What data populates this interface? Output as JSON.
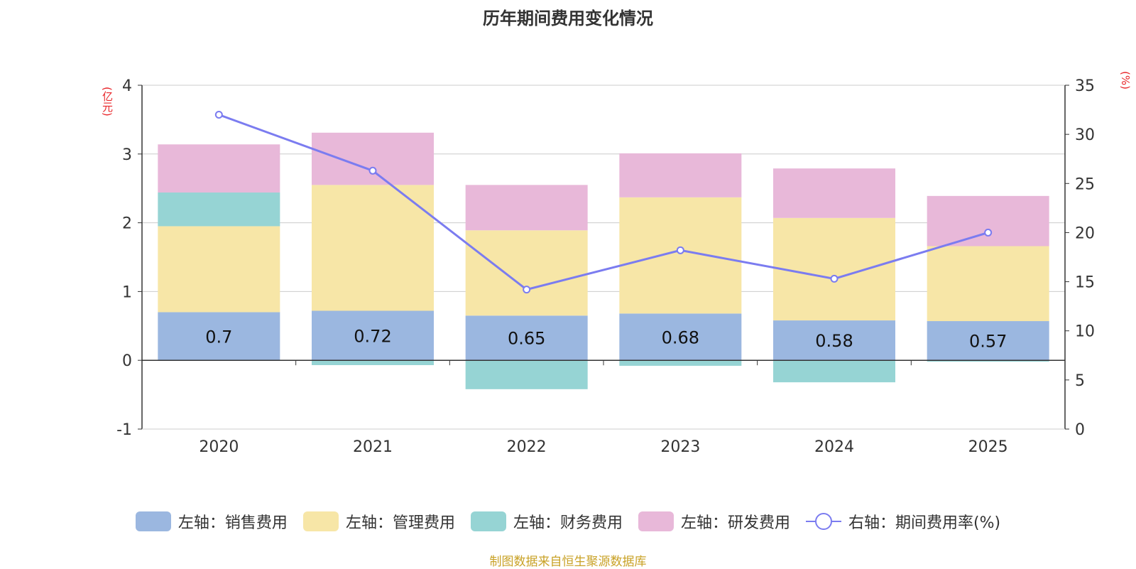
{
  "chart_data": {
    "type": "bar",
    "title": "历年期间费用变化情况",
    "left_axis_unit": "(亿元)",
    "right_axis_unit": "(%)",
    "categories": [
      "2020",
      "2021",
      "2022",
      "2023",
      "2024",
      "2025"
    ],
    "left_axis": {
      "min": -1,
      "max": 4,
      "ticks": [
        -1,
        0,
        1,
        2,
        3,
        4
      ]
    },
    "right_axis": {
      "min": 0,
      "max": 35,
      "ticks": [
        0,
        5,
        10,
        15,
        20,
        25,
        30,
        35
      ]
    },
    "grid": true,
    "legend_position": "bottom",
    "series": [
      {
        "name": "左轴：销售费用",
        "kind": "bar",
        "axis": "left",
        "color": "#9bb7e0",
        "values": [
          0.7,
          0.72,
          0.65,
          0.68,
          0.58,
          0.57
        ],
        "labels": [
          "0.7",
          "0.72",
          "0.65",
          "0.68",
          "0.58",
          "0.57"
        ]
      },
      {
        "name": "左轴：管理费用",
        "kind": "bar",
        "axis": "left",
        "color": "#f7e6a7",
        "values": [
          1.25,
          1.83,
          1.24,
          1.69,
          1.49,
          1.09
        ]
      },
      {
        "name": "左轴：财务费用",
        "kind": "bar",
        "axis": "left",
        "color": "#96d4d4",
        "values": [
          0.49,
          -0.07,
          -0.42,
          -0.08,
          -0.32,
          -0.02
        ]
      },
      {
        "name": "左轴：研发费用",
        "kind": "bar",
        "axis": "left",
        "color": "#e8b8d9",
        "values": [
          0.7,
          0.76,
          0.66,
          0.64,
          0.72,
          0.73
        ]
      },
      {
        "name": "右轴：期间费用率(%)",
        "kind": "line",
        "axis": "right",
        "color": "#7b7cf0",
        "values": [
          32.0,
          26.3,
          14.2,
          18.2,
          15.3,
          20.0
        ]
      }
    ]
  },
  "source": "制图数据来自恒生聚源数据库"
}
